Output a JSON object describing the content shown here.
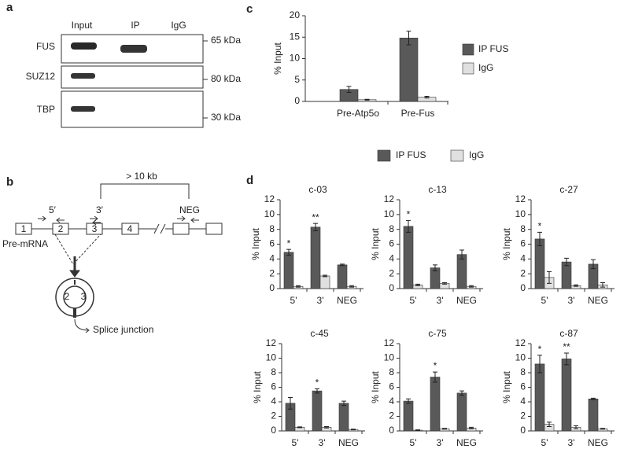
{
  "panel_labels": [
    "a",
    "b",
    "c",
    "d"
  ],
  "blot": {
    "columns": [
      "Input",
      "IP",
      "IgG"
    ],
    "rows": [
      {
        "label": "FUS",
        "marker": "65 kDa"
      },
      {
        "label": "SUZ12",
        "marker": "80 kDa"
      },
      {
        "label": "TBP",
        "marker": "30 kDa"
      }
    ]
  },
  "diagram": {
    "span": "> 10 kb",
    "primers": [
      "5′",
      "3′",
      "NEG"
    ],
    "exons": [
      "1",
      "2",
      "3",
      "4"
    ],
    "transcript": "Pre-mRNA",
    "circle_exons": [
      "2",
      "3"
    ],
    "junction": "Splice junction"
  },
  "legend_d": [
    {
      "name": "IP FUS",
      "color": "#595959"
    },
    {
      "name": "IgG",
      "color": "#e0e0e0"
    }
  ],
  "chart_data": [
    {
      "type": "bar",
      "ylabel": "% Input",
      "categories": [
        "Pre-Atp5o",
        "Pre-Fus"
      ],
      "series": [
        {
          "name": "IP FUS",
          "color": "#595959",
          "values": [
            2.8,
            14.8
          ],
          "errors": [
            0.7,
            1.6
          ]
        },
        {
          "name": "IgG",
          "color": "#e0e0e0",
          "values": [
            0.4,
            1.0
          ],
          "errors": [
            0.1,
            0.2
          ]
        }
      ],
      "ylim": [
        0,
        20
      ],
      "yticks": [
        0,
        5,
        10,
        15,
        20
      ],
      "legend": "right"
    },
    {
      "type": "bar",
      "title": "c-03",
      "ylabel": "% Input",
      "categories": [
        "5'",
        "3'",
        "NEG"
      ],
      "series": [
        {
          "color": "#595959",
          "values": [
            4.9,
            8.3,
            3.2
          ],
          "errors": [
            0.4,
            0.5,
            0.1
          ]
        },
        {
          "color": "#e0e0e0",
          "values": [
            0.3,
            1.7,
            0.3
          ],
          "errors": [
            0.1,
            0.1,
            0.1
          ]
        }
      ],
      "significance": [
        "*",
        "**",
        null
      ],
      "ylim": [
        0,
        12
      ],
      "yticks": [
        0,
        2,
        4,
        6,
        8,
        10,
        12
      ]
    },
    {
      "type": "bar",
      "title": "c-13",
      "ylabel": "% Input",
      "categories": [
        "5'",
        "3'",
        "NEG"
      ],
      "series": [
        {
          "color": "#595959",
          "values": [
            8.4,
            2.8,
            4.6
          ],
          "errors": [
            0.8,
            0.4,
            0.6
          ]
        },
        {
          "color": "#e0e0e0",
          "values": [
            0.5,
            0.7,
            0.3
          ],
          "errors": [
            0.1,
            0.1,
            0.1
          ]
        }
      ],
      "significance": [
        "*",
        null,
        null
      ],
      "ylim": [
        0,
        12
      ],
      "yticks": [
        0,
        2,
        4,
        6,
        8,
        10,
        12
      ]
    },
    {
      "type": "bar",
      "title": "c-27",
      "ylabel": "% Input",
      "categories": [
        "5'",
        "3'",
        "NEG"
      ],
      "series": [
        {
          "color": "#595959",
          "values": [
            6.7,
            3.6,
            3.3
          ],
          "errors": [
            0.9,
            0.5,
            0.6
          ]
        },
        {
          "color": "#e0e0e0",
          "values": [
            1.5,
            0.4,
            0.5
          ],
          "errors": [
            0.8,
            0.1,
            0.3
          ]
        }
      ],
      "significance": [
        "*",
        null,
        null
      ],
      "ylim": [
        0,
        12
      ],
      "yticks": [
        0,
        2,
        4,
        6,
        8,
        10,
        12
      ]
    },
    {
      "type": "bar",
      "title": "c-45",
      "ylabel": "% Input",
      "categories": [
        "5'",
        "3'",
        "NEG"
      ],
      "series": [
        {
          "color": "#595959",
          "values": [
            3.8,
            5.5,
            3.8
          ],
          "errors": [
            0.8,
            0.3,
            0.3
          ]
        },
        {
          "color": "#e0e0e0",
          "values": [
            0.5,
            0.5,
            0.2
          ],
          "errors": [
            0.05,
            0.1,
            0.05
          ]
        }
      ],
      "significance": [
        null,
        "*",
        null
      ],
      "ylim": [
        0,
        12
      ],
      "yticks": [
        0,
        2,
        4,
        6,
        8,
        10,
        12
      ]
    },
    {
      "type": "bar",
      "title": "c-75",
      "ylabel": "% Input",
      "categories": [
        "5'",
        "3'",
        "NEG"
      ],
      "series": [
        {
          "color": "#595959",
          "values": [
            4.1,
            7.4,
            5.2
          ],
          "errors": [
            0.3,
            0.7,
            0.3
          ]
        },
        {
          "color": "#e0e0e0",
          "values": [
            0.1,
            0.3,
            0.4
          ],
          "errors": [
            0.05,
            0.05,
            0.1
          ]
        }
      ],
      "significance": [
        null,
        "*",
        null
      ],
      "ylim": [
        0,
        12
      ],
      "yticks": [
        0,
        2,
        4,
        6,
        8,
        10,
        12
      ]
    },
    {
      "type": "bar",
      "title": "c-87",
      "ylabel": "% Input",
      "categories": [
        "5'",
        "3'",
        "NEG"
      ],
      "series": [
        {
          "color": "#595959",
          "values": [
            9.2,
            9.9,
            4.4
          ],
          "errors": [
            1.2,
            0.8,
            0.1
          ]
        },
        {
          "color": "#e0e0e0",
          "values": [
            0.9,
            0.5,
            0.3
          ],
          "errors": [
            0.3,
            0.2,
            0.05
          ]
        }
      ],
      "significance": [
        "*",
        "**",
        null
      ],
      "ylim": [
        0,
        12
      ],
      "yticks": [
        0,
        2,
        4,
        6,
        8,
        10,
        12
      ]
    }
  ]
}
